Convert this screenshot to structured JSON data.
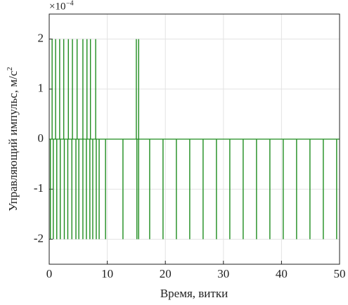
{
  "chart_data": {
    "type": "impulse",
    "xlabel": "Время, витки",
    "ylabel": "Управляющий импульс, м/с",
    "ylabel_superscript": "2",
    "y_scale_base": "×10",
    "y_scale_exponent": "−4",
    "color": "#1e8c1e",
    "x": [
      0.5,
      1.1,
      1.8,
      2.5,
      3.3,
      4.0,
      4.8,
      5.8,
      6.5,
      7.1,
      8.0,
      15.0,
      15.4,
      0.2,
      0.7,
      1.3,
      1.9,
      2.6,
      3.2,
      3.9,
      4.6,
      5.1,
      5.8,
      6.4,
      7.0,
      7.5,
      8.1,
      8.6,
      9.7,
      12.7,
      15.1,
      15.4,
      17.3,
      19.6,
      21.9,
      24.2,
      26.5,
      28.8,
      31.1,
      33.4,
      35.7,
      38.0,
      40.3,
      42.6,
      44.9,
      47.2,
      49.5
    ],
    "values": [
      2,
      2,
      2,
      2,
      2,
      2,
      2,
      2,
      2,
      2,
      2,
      2,
      2,
      -2,
      -2,
      -2,
      -2,
      -2,
      -2,
      -2,
      -2,
      -2,
      -2,
      -2,
      -2,
      -2,
      -2,
      -2,
      -2,
      -2,
      -2,
      -2,
      -2,
      -2,
      -2,
      -2,
      -2,
      -2,
      -2,
      -2,
      -2,
      -2,
      -2,
      -2,
      -2,
      -2,
      -2
    ],
    "xlim": [
      0,
      50
    ],
    "xticks": [
      0,
      10,
      20,
      30,
      40,
      50
    ],
    "ylim": [
      -2.5,
      2.5
    ],
    "yticks": [
      -2,
      -1,
      0,
      1,
      2
    ],
    "grid": true
  }
}
